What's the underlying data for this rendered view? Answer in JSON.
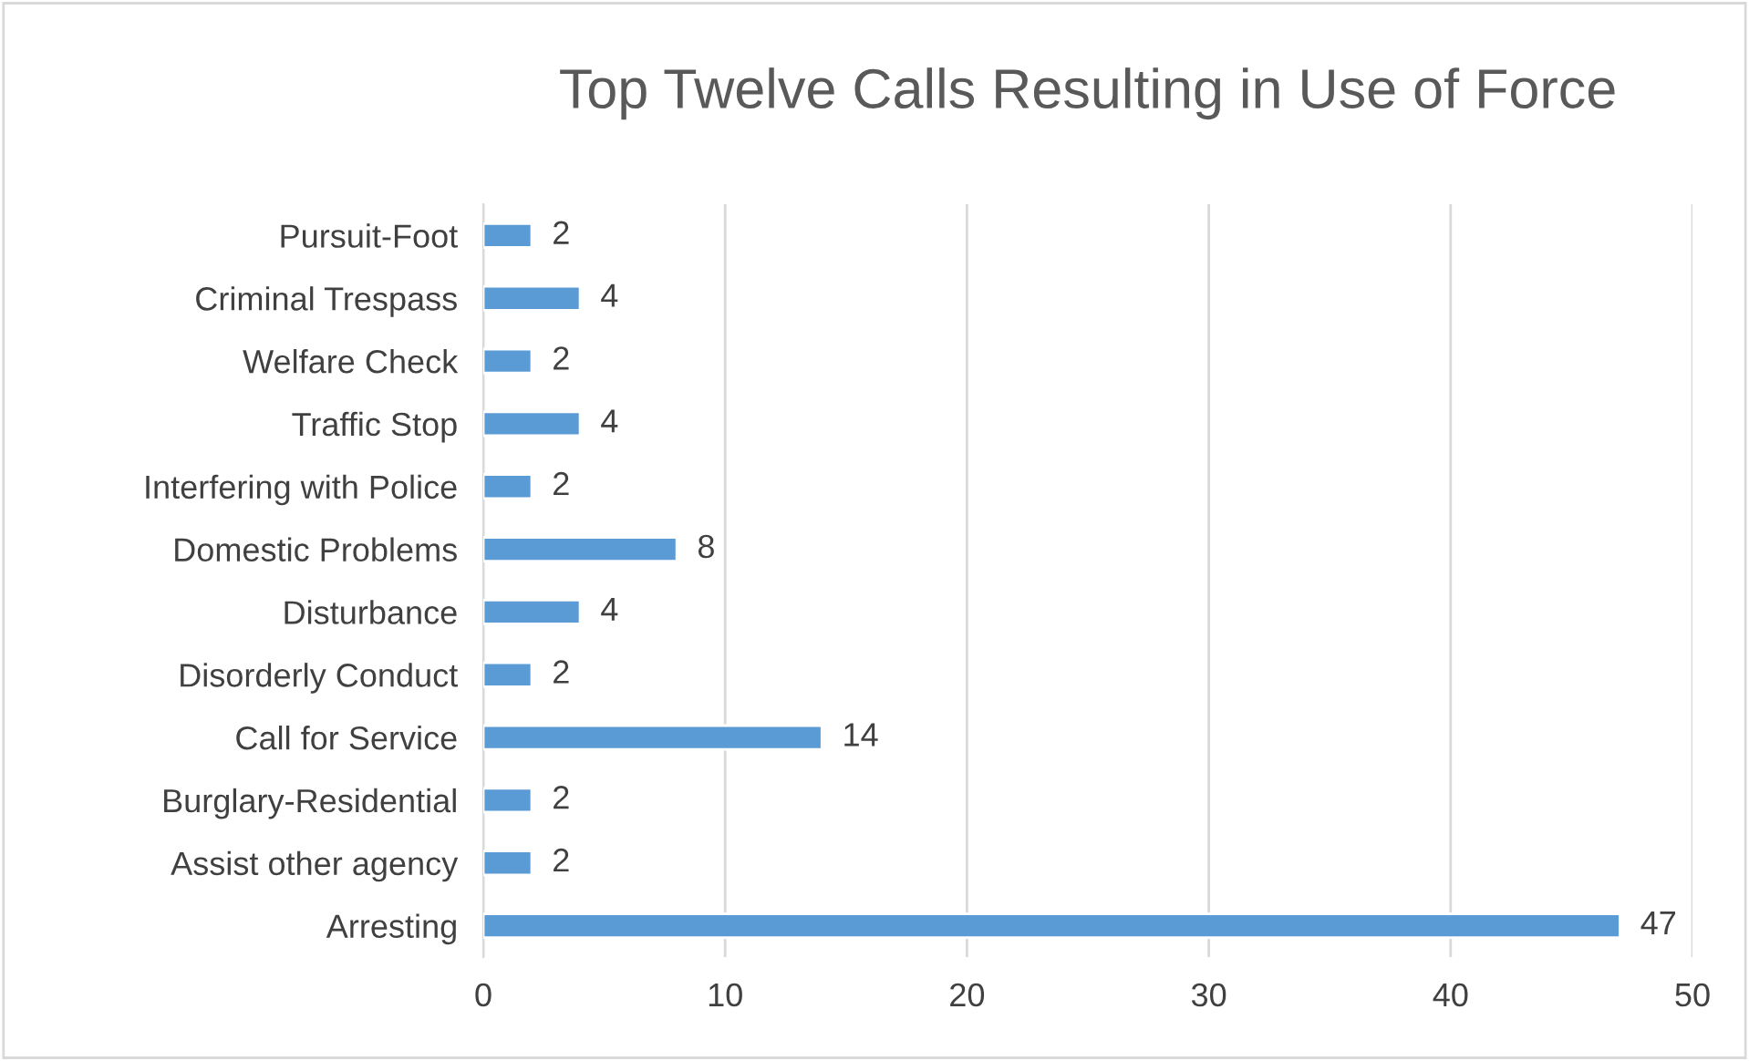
{
  "chart_data": {
    "type": "bar",
    "orientation": "horizontal",
    "title": "Top Twelve Calls Resulting in Use of Force",
    "categories": [
      "Pursuit-Foot",
      "Criminal Trespass",
      "Welfare Check",
      "Traffic Stop",
      "Interfering with Police",
      "Domestic Problems",
      "Disturbance",
      "Disorderly Conduct",
      "Call for Service",
      "Burglary-Residential",
      "Assist other agency",
      "Arresting"
    ],
    "values": [
      2,
      4,
      2,
      4,
      2,
      8,
      4,
      2,
      14,
      2,
      2,
      47
    ],
    "color": "#5b9bd5",
    "xlim": [
      0,
      50
    ],
    "xticks": [
      0,
      10,
      20,
      30,
      40,
      50
    ],
    "grid": "x",
    "data_labels": true
  }
}
